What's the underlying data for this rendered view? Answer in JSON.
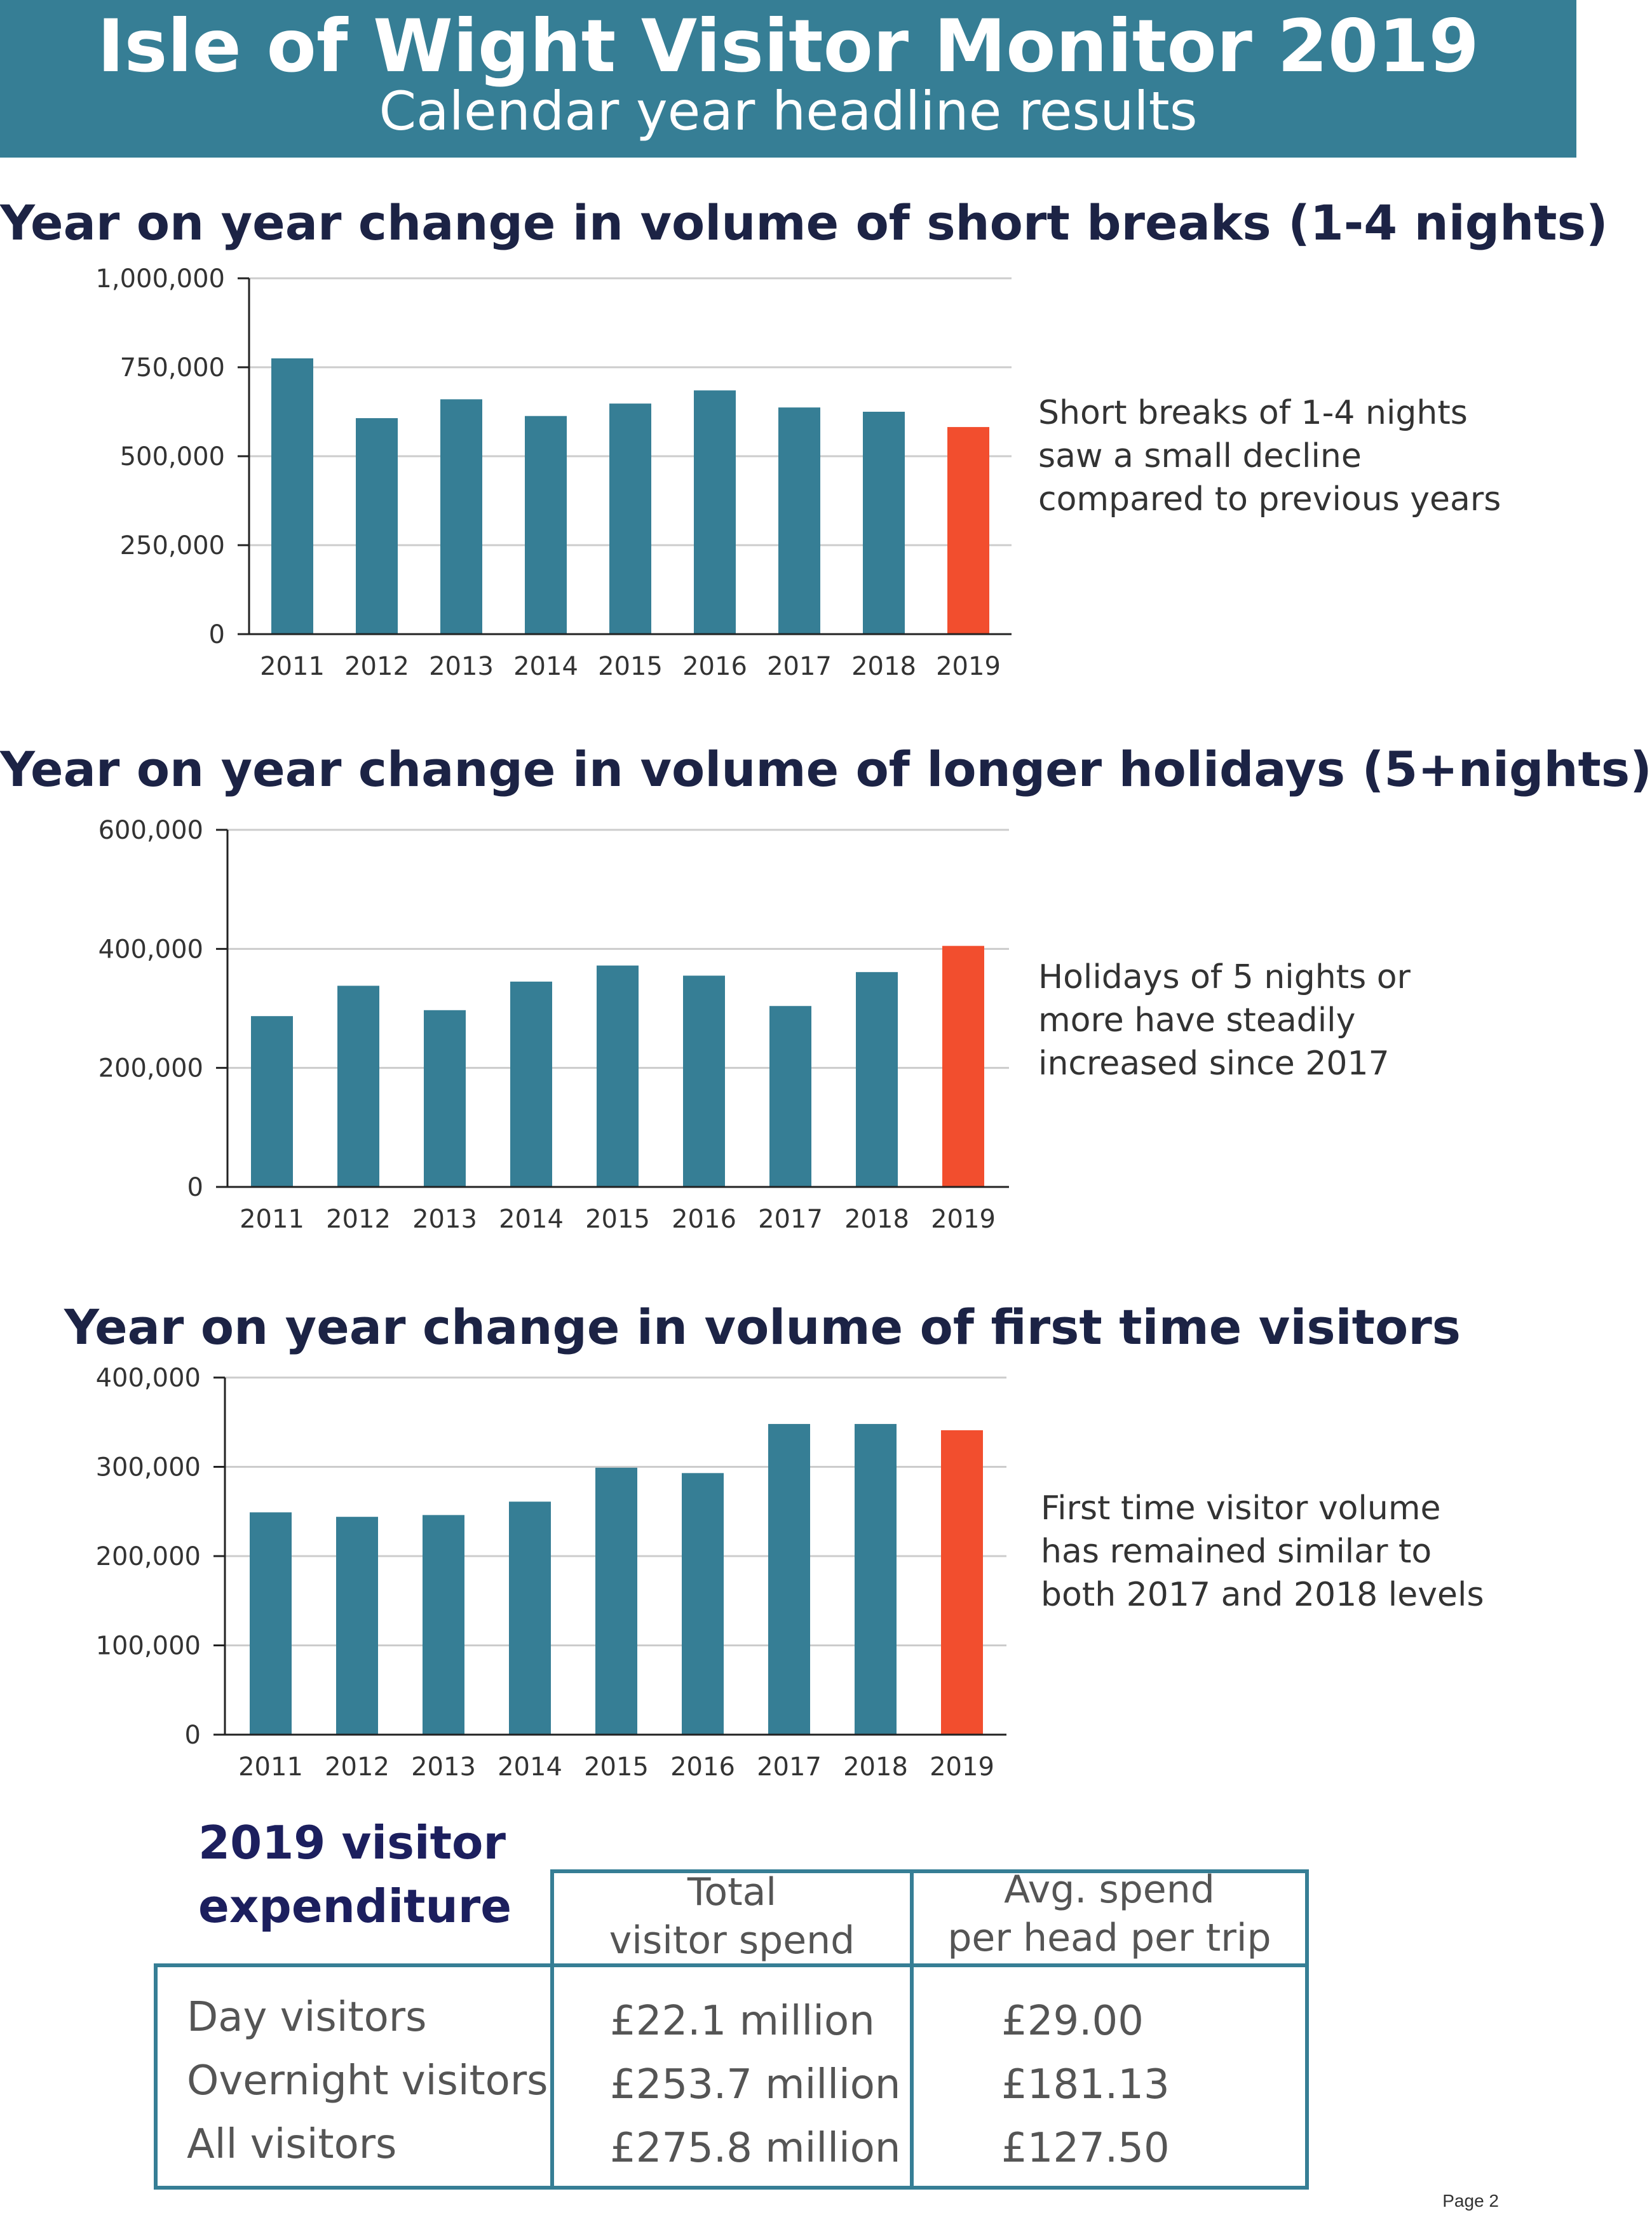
{
  "header": {
    "title": "Isle of Wight Visitor Monitor 2019",
    "subtitle": "Calendar year headline results"
  },
  "colors": {
    "banner": "#367e95",
    "bar": "#367e95",
    "highlight_bar": "#f24e2e",
    "title_text": "#1c2345"
  },
  "chart_data": [
    {
      "type": "bar",
      "title": "Year on year change in volume of short breaks (1-4 nights)",
      "categories": [
        "2011",
        "2012",
        "2013",
        "2014",
        "2015",
        "2016",
        "2017",
        "2018",
        "2019"
      ],
      "values": [
        775000,
        607000,
        660000,
        613000,
        648000,
        685000,
        637000,
        625000,
        582000
      ],
      "highlight_category": "2019",
      "ylim": [
        0,
        1000000
      ],
      "yticks": [
        0,
        250000,
        500000,
        750000,
        1000000
      ],
      "ytick_labels": [
        "0",
        "250,000",
        "500,000",
        "750,000",
        "1,000,000"
      ],
      "grid": true,
      "xlabel": "",
      "ylabel": "",
      "note": "Short breaks of 1-4 nights\nsaw a small decline\ncompared to previous years"
    },
    {
      "type": "bar",
      "title": "Year on year change in volume of longer holidays (5+nights)",
      "categories": [
        "2011",
        "2012",
        "2013",
        "2014",
        "2015",
        "2016",
        "2017",
        "2018",
        "2019"
      ],
      "values": [
        287000,
        338000,
        297000,
        345000,
        372000,
        355000,
        304000,
        361000,
        405000
      ],
      "highlight_category": "2019",
      "ylim": [
        0,
        600000
      ],
      "yticks": [
        0,
        200000,
        400000,
        600000
      ],
      "ytick_labels": [
        "0",
        "200,000",
        "400,000",
        "600,000"
      ],
      "grid": true,
      "xlabel": "",
      "ylabel": "",
      "note": "Holidays of 5 nights or\nmore have steadily\nincreased since 2017"
    },
    {
      "type": "bar",
      "title": "Year on year change in volume of first time visitors",
      "categories": [
        "2011",
        "2012",
        "2013",
        "2014",
        "2015",
        "2016",
        "2017",
        "2018",
        "2019"
      ],
      "values": [
        249000,
        244000,
        246000,
        261000,
        299000,
        293000,
        348000,
        348000,
        341000
      ],
      "highlight_category": "2019",
      "ylim": [
        0,
        400000
      ],
      "yticks": [
        0,
        100000,
        200000,
        300000,
        400000
      ],
      "ytick_labels": [
        "0",
        "100,000",
        "200,000",
        "300,000",
        "400,000"
      ],
      "grid": true,
      "xlabel": "",
      "ylabel": "",
      "note": "First time visitor volume\nhas remained similar to\nboth 2017 and 2018 levels"
    }
  ],
  "expenditure": {
    "title": "2019 visitor\nexpenditure",
    "columns": [
      "Total\nvisitor spend",
      "Avg. spend\nper head per trip"
    ],
    "rows": [
      {
        "label": "Day visitors",
        "total": "£22.1 million",
        "avg": "£29.00"
      },
      {
        "label": "Overnight visitors",
        "total": "£253.7 million",
        "avg": "£181.13"
      },
      {
        "label": "All visitors",
        "total": "£275.8 million",
        "avg": "£127.50"
      }
    ]
  },
  "footer": {
    "page": "Page 2"
  }
}
